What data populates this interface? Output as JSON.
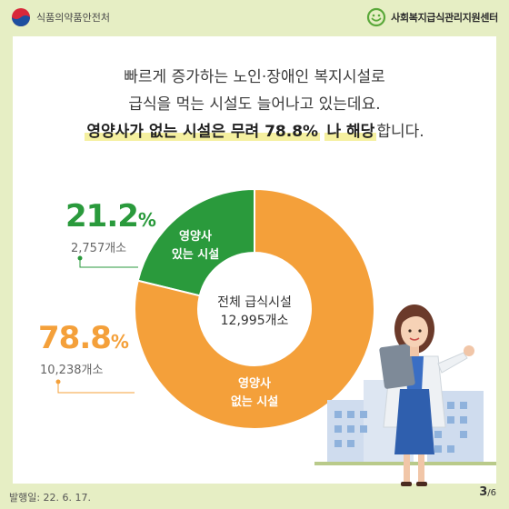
{
  "header": {
    "left_org": "식품의약품안전처",
    "right_org": "사회복지급식관리지원센터"
  },
  "headline": {
    "line1": "빠르게 증가하는 노인·장애인 복지시설로",
    "line2": "급식을 먹는 시설도 늘어나고 있는데요.",
    "line3_strong": "영양사가 없는 시설은 무려 78.8%",
    "line3_strong2": "나 해당",
    "line3_rest": "합니다."
  },
  "chart_data": {
    "type": "pie",
    "donut": true,
    "center_label": "전체 급식시설",
    "center_value": "12,995개소",
    "slices": [
      {
        "label_line1": "영양사",
        "label_line2": "있는 시설",
        "percent": 21.2,
        "percent_text": "21.2",
        "count": "2,757개소",
        "color": "#2a9a3c"
      },
      {
        "label_line1": "영양사",
        "label_line2": "없는 시설",
        "percent": 78.8,
        "percent_text": "78.8",
        "count": "10,238개소",
        "color": "#f4a03a"
      }
    ],
    "percent_sign": "%"
  },
  "footer": {
    "date": "발행일: 22. 6. 17.",
    "page": "3",
    "total": "/6"
  },
  "colors": {
    "frame": "#e6eec4",
    "green": "#2a9a3c",
    "orange": "#f4a03a"
  }
}
